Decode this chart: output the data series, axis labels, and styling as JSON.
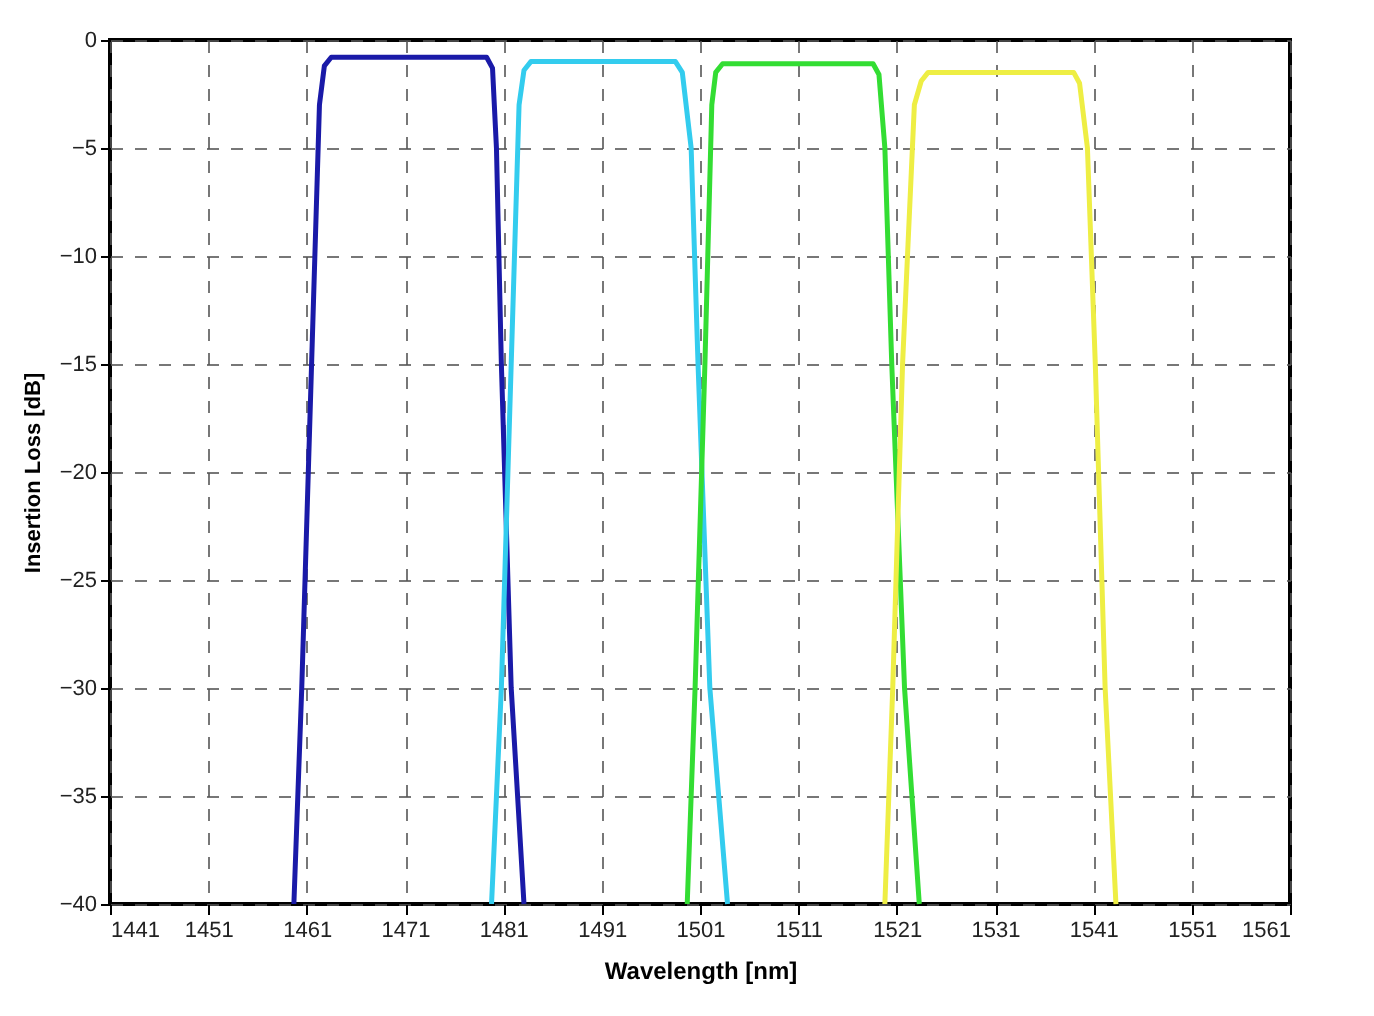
{
  "chart_data": {
    "type": "line",
    "xlabel": "Wavelength [nm]",
    "ylabel": "Insertion Loss [dB]",
    "series": [
      {
        "color": "#1a1aa8",
        "x": [
          1459.7,
          1460.5,
          1461.5,
          1462.3,
          1462.8,
          1463.5,
          1479.3,
          1479.9,
          1480.3,
          1480.8,
          1481.8,
          1483.1
        ],
        "values": [
          -40,
          -30,
          -15,
          -3,
          -1.2,
          -0.8,
          -0.8,
          -1.3,
          -5,
          -15,
          -30,
          -40
        ]
      },
      {
        "color": "#33ccee",
        "x": [
          1479.8,
          1480.8,
          1481.8,
          1482.6,
          1483.1,
          1483.8,
          1498.5,
          1499.2,
          1500.1,
          1500.8,
          1502.0,
          1503.8
        ],
        "values": [
          -40,
          -30,
          -15,
          -3,
          -1.4,
          -1.0,
          -1.0,
          -1.5,
          -5,
          -15,
          -30,
          -40
        ]
      },
      {
        "color": "#33dd33",
        "x": [
          1499.7,
          1500.5,
          1501.5,
          1502.2,
          1502.6,
          1503.3,
          1518.6,
          1519.2,
          1519.8,
          1520.5,
          1521.8,
          1523.3
        ],
        "values": [
          -40,
          -30,
          -15,
          -3,
          -1.5,
          -1.1,
          -1.1,
          -1.6,
          -5,
          -15,
          -30,
          -40
        ]
      },
      {
        "color": "#eeee44",
        "x": [
          1519.8,
          1520.6,
          1521.6,
          1522.8,
          1523.5,
          1524.2,
          1539.0,
          1539.6,
          1540.4,
          1541.2,
          1542.2,
          1543.3
        ],
        "values": [
          -40,
          -30,
          -15,
          -3,
          -1.9,
          -1.5,
          -1.5,
          -2.0,
          -5,
          -15,
          -30,
          -40
        ]
      }
    ],
    "xlim": [
      1441,
      1561
    ],
    "xticks": [
      1441,
      1451,
      1461,
      1471,
      1481,
      1491,
      1501,
      1511,
      1521,
      1531,
      1541,
      1551,
      1561
    ],
    "ylim": [
      -40,
      0
    ],
    "yticks": [
      -40,
      -35,
      -30,
      -25,
      -20,
      -15,
      -10,
      -5,
      0
    ],
    "grid": true,
    "line_style": "solid",
    "marker": "none"
  }
}
